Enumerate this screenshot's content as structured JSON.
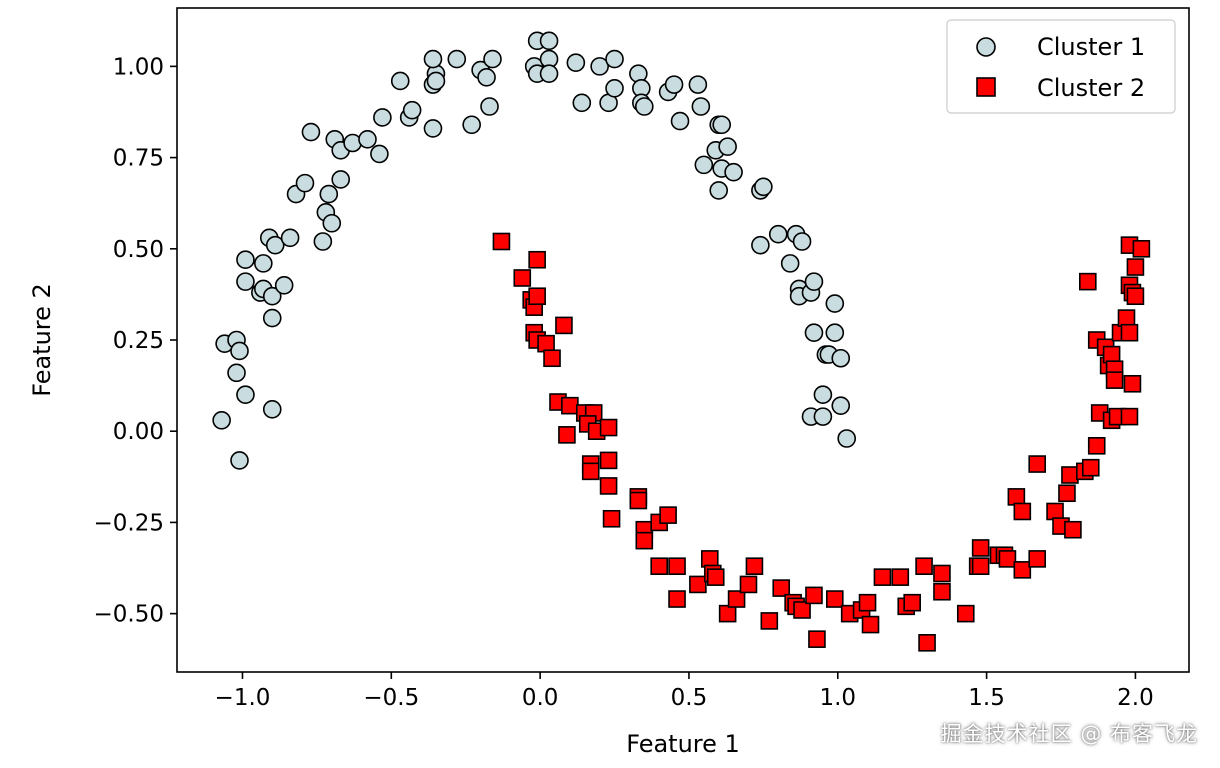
{
  "chart_data": {
    "type": "scatter",
    "xlabel": "Feature 1",
    "ylabel": "Feature 2",
    "xlim": [
      -1.22,
      2.18
    ],
    "ylim": [
      -0.66,
      1.16
    ],
    "xticks": [
      -1.0,
      -0.5,
      0.0,
      0.5,
      1.0,
      1.5,
      2.0
    ],
    "xtick_labels": [
      "−1.0",
      "−0.5",
      "0.0",
      "0.5",
      "1.0",
      "1.5",
      "2.0"
    ],
    "yticks": [
      -0.5,
      -0.25,
      0.0,
      0.25,
      0.5,
      0.75,
      1.0
    ],
    "ytick_labels": [
      "−0.50",
      "−0.25",
      "0.00",
      "0.25",
      "0.50",
      "0.75",
      "1.00"
    ],
    "grid": false,
    "legend_position": "top-right",
    "series": [
      {
        "name": "Cluster 1",
        "marker": "circle",
        "color": "#c9dde0",
        "edgecolor": "#000000",
        "points": [
          [
            -1.06,
            0.24
          ],
          [
            -1.02,
            0.25
          ],
          [
            -1.01,
            0.22
          ],
          [
            -1.02,
            0.16
          ],
          [
            -0.99,
            0.1
          ],
          [
            -1.07,
            0.03
          ],
          [
            -1.01,
            -0.08
          ],
          [
            -0.9,
            0.06
          ],
          [
            -0.99,
            0.47
          ],
          [
            -0.99,
            0.41
          ],
          [
            -0.94,
            0.38
          ],
          [
            -0.93,
            0.39
          ],
          [
            -0.9,
            0.37
          ],
          [
            -0.86,
            0.4
          ],
          [
            -0.9,
            0.31
          ],
          [
            -0.93,
            0.46
          ],
          [
            -0.91,
            0.53
          ],
          [
            -0.89,
            0.51
          ],
          [
            -0.84,
            0.53
          ],
          [
            -0.73,
            0.52
          ],
          [
            -0.72,
            0.6
          ],
          [
            -0.7,
            0.57
          ],
          [
            -0.71,
            0.65
          ],
          [
            -0.67,
            0.69
          ],
          [
            -0.82,
            0.65
          ],
          [
            -0.79,
            0.68
          ],
          [
            -0.77,
            0.82
          ],
          [
            -0.69,
            0.8
          ],
          [
            -0.67,
            0.77
          ],
          [
            -0.63,
            0.79
          ],
          [
            -0.58,
            0.8
          ],
          [
            -0.54,
            0.76
          ],
          [
            -0.53,
            0.86
          ],
          [
            -0.44,
            0.86
          ],
          [
            -0.43,
            0.88
          ],
          [
            -0.47,
            0.96
          ],
          [
            -0.36,
            0.95
          ],
          [
            -0.35,
            0.98
          ],
          [
            -0.35,
            0.96
          ],
          [
            -0.36,
            1.02
          ],
          [
            -0.36,
            0.83
          ],
          [
            -0.28,
            1.02
          ],
          [
            -0.23,
            0.84
          ],
          [
            -0.2,
            0.99
          ],
          [
            -0.18,
            0.97
          ],
          [
            -0.17,
            0.89
          ],
          [
            -0.16,
            1.02
          ],
          [
            -0.02,
            1.0
          ],
          [
            -0.01,
            0.98
          ],
          [
            -0.01,
            1.07
          ],
          [
            0.03,
            1.07
          ],
          [
            0.03,
            1.02
          ],
          [
            0.03,
            0.98
          ],
          [
            0.12,
            1.01
          ],
          [
            0.14,
            0.9
          ],
          [
            0.2,
            1.0
          ],
          [
            0.23,
            0.9
          ],
          [
            0.25,
            0.94
          ],
          [
            0.25,
            1.02
          ],
          [
            0.33,
            0.98
          ],
          [
            0.34,
            0.94
          ],
          [
            0.34,
            0.9
          ],
          [
            0.35,
            0.89
          ],
          [
            0.43,
            0.93
          ],
          [
            0.45,
            0.95
          ],
          [
            0.47,
            0.85
          ],
          [
            0.53,
            0.95
          ],
          [
            0.54,
            0.89
          ],
          [
            0.55,
            0.73
          ],
          [
            0.59,
            0.77
          ],
          [
            0.6,
            0.84
          ],
          [
            0.61,
            0.84
          ],
          [
            0.61,
            0.72
          ],
          [
            0.6,
            0.66
          ],
          [
            0.63,
            0.78
          ],
          [
            0.65,
            0.71
          ],
          [
            0.74,
            0.66
          ],
          [
            0.75,
            0.67
          ],
          [
            0.74,
            0.51
          ],
          [
            0.8,
            0.54
          ],
          [
            0.84,
            0.46
          ],
          [
            0.86,
            0.54
          ],
          [
            0.88,
            0.52
          ],
          [
            0.87,
            0.39
          ],
          [
            0.87,
            0.37
          ],
          [
            0.91,
            0.38
          ],
          [
            0.92,
            0.41
          ],
          [
            0.92,
            0.27
          ],
          [
            0.96,
            0.21
          ],
          [
            0.97,
            0.21
          ],
          [
            0.99,
            0.27
          ],
          [
            0.99,
            0.35
          ],
          [
            1.01,
            0.2
          ],
          [
            0.95,
            0.1
          ],
          [
            0.91,
            0.04
          ],
          [
            0.95,
            0.04
          ],
          [
            1.01,
            0.07
          ],
          [
            1.03,
            -0.02
          ]
        ]
      },
      {
        "name": "Cluster 2",
        "marker": "square",
        "color": "#ff0000",
        "edgecolor": "#000000",
        "points": [
          [
            -0.13,
            0.52
          ],
          [
            -0.06,
            0.42
          ],
          [
            -0.03,
            0.36
          ],
          [
            -0.02,
            0.34
          ],
          [
            -0.01,
            0.37
          ],
          [
            -0.01,
            0.47
          ],
          [
            -0.02,
            0.27
          ],
          [
            -0.01,
            0.25
          ],
          [
            0.02,
            0.24
          ],
          [
            0.04,
            0.2
          ],
          [
            0.08,
            0.29
          ],
          [
            0.06,
            0.08
          ],
          [
            0.1,
            0.07
          ],
          [
            0.15,
            0.05
          ],
          [
            0.18,
            0.05
          ],
          [
            0.16,
            0.02
          ],
          [
            0.19,
            0.0
          ],
          [
            0.23,
            0.01
          ],
          [
            0.09,
            -0.01
          ],
          [
            0.17,
            -0.09
          ],
          [
            0.17,
            -0.11
          ],
          [
            0.23,
            -0.08
          ],
          [
            0.23,
            -0.15
          ],
          [
            0.24,
            -0.24
          ],
          [
            0.33,
            -0.18
          ],
          [
            0.33,
            -0.19
          ],
          [
            0.35,
            -0.27
          ],
          [
            0.35,
            -0.3
          ],
          [
            0.4,
            -0.25
          ],
          [
            0.43,
            -0.23
          ],
          [
            0.4,
            -0.37
          ],
          [
            0.46,
            -0.37
          ],
          [
            0.46,
            -0.46
          ],
          [
            0.53,
            -0.42
          ],
          [
            0.57,
            -0.35
          ],
          [
            0.58,
            -0.39
          ],
          [
            0.59,
            -0.4
          ],
          [
            0.63,
            -0.5
          ],
          [
            0.66,
            -0.46
          ],
          [
            0.7,
            -0.42
          ],
          [
            0.72,
            -0.37
          ],
          [
            0.77,
            -0.52
          ],
          [
            0.81,
            -0.43
          ],
          [
            0.85,
            -0.47
          ],
          [
            0.86,
            -0.48
          ],
          [
            0.88,
            -0.49
          ],
          [
            0.92,
            -0.45
          ],
          [
            0.93,
            -0.57
          ],
          [
            0.99,
            -0.46
          ],
          [
            1.04,
            -0.5
          ],
          [
            1.08,
            -0.49
          ],
          [
            1.1,
            -0.47
          ],
          [
            1.11,
            -0.53
          ],
          [
            1.15,
            -0.4
          ],
          [
            1.21,
            -0.4
          ],
          [
            1.23,
            -0.48
          ],
          [
            1.25,
            -0.47
          ],
          [
            1.29,
            -0.37
          ],
          [
            1.3,
            -0.58
          ],
          [
            1.35,
            -0.39
          ],
          [
            1.35,
            -0.44
          ],
          [
            1.43,
            -0.5
          ],
          [
            1.47,
            -0.37
          ],
          [
            1.48,
            -0.37
          ],
          [
            1.48,
            -0.32
          ],
          [
            1.54,
            -0.34
          ],
          [
            1.56,
            -0.34
          ],
          [
            1.57,
            -0.35
          ],
          [
            1.62,
            -0.38
          ],
          [
            1.6,
            -0.18
          ],
          [
            1.62,
            -0.22
          ],
          [
            1.67,
            -0.35
          ],
          [
            1.67,
            -0.09
          ],
          [
            1.73,
            -0.22
          ],
          [
            1.75,
            -0.26
          ],
          [
            1.77,
            -0.17
          ],
          [
            1.78,
            -0.12
          ],
          [
            1.79,
            -0.27
          ],
          [
            1.83,
            -0.11
          ],
          [
            1.85,
            -0.1
          ],
          [
            1.87,
            -0.04
          ],
          [
            1.88,
            0.05
          ],
          [
            1.92,
            0.03
          ],
          [
            1.94,
            0.04
          ],
          [
            1.98,
            0.04
          ],
          [
            1.84,
            0.41
          ],
          [
            1.87,
            0.25
          ],
          [
            1.9,
            0.23
          ],
          [
            1.91,
            0.18
          ],
          [
            1.92,
            0.21
          ],
          [
            1.93,
            0.17
          ],
          [
            1.93,
            0.14
          ],
          [
            1.95,
            0.27
          ],
          [
            1.97,
            0.31
          ],
          [
            1.98,
            0.27
          ],
          [
            1.99,
            0.13
          ],
          [
            1.98,
            0.4
          ],
          [
            1.99,
            0.38
          ],
          [
            2.0,
            0.37
          ],
          [
            1.98,
            0.51
          ],
          [
            2.0,
            0.45
          ],
          [
            2.02,
            0.5
          ]
        ]
      }
    ]
  },
  "watermark": "掘金技术社区 @ 布客飞龙"
}
